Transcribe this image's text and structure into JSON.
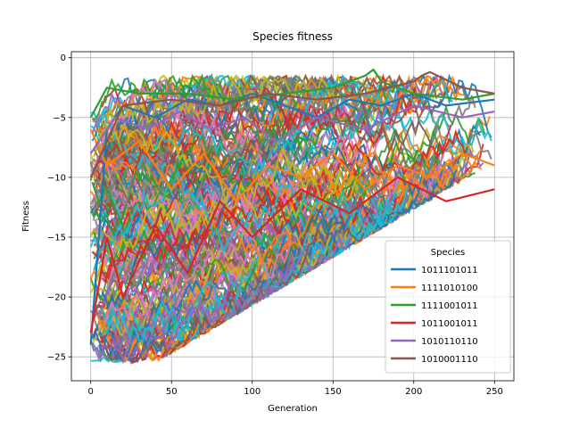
{
  "chart_data": {
    "type": "line",
    "title": "Species fitness",
    "xlabel": "Generation",
    "ylabel": "Fitness",
    "xlim": [
      -12,
      262
    ],
    "ylim": [
      -27,
      0.5
    ],
    "xticks": [
      0,
      50,
      100,
      150,
      200,
      250
    ],
    "yticks": [
      0,
      -5,
      -10,
      -15,
      -20,
      -25
    ],
    "grid": true,
    "legend": {
      "title": "Species",
      "placement": "lower-right",
      "entries": [
        {
          "name": "1011101011",
          "color": "#1f77b4"
        },
        {
          "name": "1111010100",
          "color": "#ff7f0e"
        },
        {
          "name": "1111001011",
          "color": "#2ca02c"
        },
        {
          "name": "1011001011",
          "color": "#d62728"
        },
        {
          "name": "1010110110",
          "color": "#9467bd"
        },
        {
          "name": "1010001110",
          "color": "#8c564b"
        }
      ]
    },
    "palette": [
      "#1f77b4",
      "#ff7f0e",
      "#2ca02c",
      "#d62728",
      "#9467bd",
      "#8c564b",
      "#e377c2",
      "#7f7f7f",
      "#bcbd22",
      "#17becf"
    ],
    "series": [
      {
        "name": "1011101011",
        "x": [
          0,
          10,
          20,
          40,
          60,
          80,
          100,
          120,
          140,
          160,
          180,
          200,
          220,
          250
        ],
        "y": [
          -24,
          -6,
          -4,
          -5,
          -3.5,
          -4,
          -3,
          -4,
          -5,
          -3.5,
          -4,
          -3,
          -4,
          -3.5
        ]
      },
      {
        "name": "1111010100",
        "x": [
          0,
          10,
          30,
          50,
          70,
          90,
          110,
          130,
          150,
          170,
          190,
          210,
          230,
          250
        ],
        "y": [
          -6,
          -9,
          -7,
          -11,
          -8,
          -12,
          -9,
          -10,
          -8,
          -11,
          -9,
          -10,
          -8,
          -9
        ]
      },
      {
        "name": "1111001011",
        "x": [
          0,
          10,
          30,
          60,
          90,
          120,
          150,
          170,
          175,
          180,
          200,
          230,
          250
        ],
        "y": [
          -5,
          -2.5,
          -3,
          -3,
          -3.5,
          -3,
          -2.5,
          -1.5,
          -1,
          -2,
          -3,
          -3.5,
          -3
        ]
      },
      {
        "name": "1011001011",
        "x": [
          0,
          10,
          20,
          40,
          60,
          80,
          100,
          130,
          160,
          190,
          220,
          250
        ],
        "y": [
          -23,
          -15,
          -20,
          -14,
          -18,
          -12,
          -15,
          -11,
          -13,
          -10,
          -12,
          -11
        ]
      },
      {
        "name": "1010110110",
        "x": [
          0,
          15,
          35,
          55,
          75,
          95,
          115,
          140,
          170,
          200,
          230,
          250
        ],
        "y": [
          -8,
          -5,
          -6,
          -4.5,
          -6,
          -5,
          -7,
          -5,
          -6,
          -4,
          -5,
          -4.5
        ]
      },
      {
        "name": "1010001110",
        "x": [
          0,
          20,
          50,
          80,
          110,
          140,
          170,
          200,
          205,
          210,
          230,
          250
        ],
        "y": [
          -10,
          -4,
          -3.5,
          -4,
          -3,
          -3.5,
          -3,
          -2,
          -1.5,
          -1.2,
          -2.5,
          -3
        ]
      }
    ]
  }
}
